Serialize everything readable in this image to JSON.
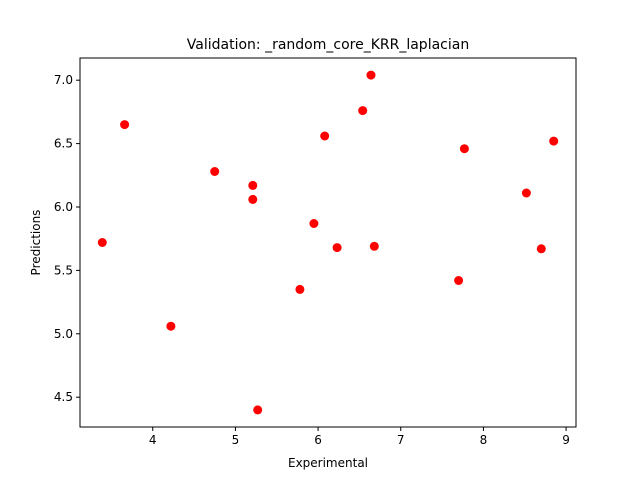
{
  "chart_data": {
    "type": "scatter",
    "title": "Validation: _random_core_KRR_laplacian",
    "xlabel": "Experimental",
    "ylabel": "Predictions",
    "xlim": [
      3.12,
      9.12
    ],
    "ylim": [
      4.265,
      7.175
    ],
    "xticks": [
      "4",
      "5",
      "6",
      "7",
      "8",
      "9"
    ],
    "yticks": [
      "4.5",
      "5.0",
      "5.5",
      "6.0",
      "6.5",
      "7.0"
    ],
    "grid": false,
    "marker_color": "#ff0000",
    "series": [
      {
        "x": [
          3.39,
          3.66,
          4.22,
          4.75,
          5.21,
          5.21,
          5.27,
          5.78,
          5.95,
          6.08,
          6.23,
          6.54,
          6.64,
          6.68,
          7.7,
          7.77,
          8.52,
          8.7,
          8.85
        ],
        "y": [
          5.72,
          6.65,
          5.06,
          6.28,
          6.17,
          6.06,
          4.4,
          5.35,
          5.87,
          6.56,
          5.68,
          6.76,
          7.04,
          5.69,
          5.42,
          6.46,
          6.11,
          5.67,
          6.52
        ]
      }
    ]
  }
}
